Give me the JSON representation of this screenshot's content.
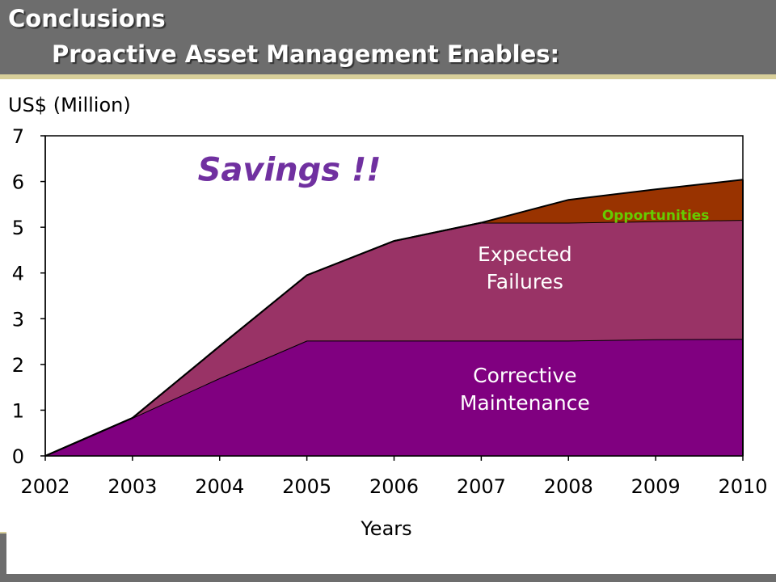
{
  "slide": {
    "title_line1": "Conclusions",
    "title_line2": "Proactive Asset Management Enables:"
  },
  "chart_data": {
    "type": "area",
    "stacked": true,
    "ylabel": "US$ (Million)",
    "xlabel": "Years",
    "x": [
      2002,
      2003,
      2004,
      2005,
      2006,
      2007,
      2008,
      2009,
      2010
    ],
    "ylim": [
      0,
      7
    ],
    "yticks": [
      0,
      1,
      2,
      3,
      4,
      5,
      6,
      7
    ],
    "grid": false,
    "series": [
      {
        "name": "Corrective Maintenance",
        "values": [
          0,
          0.83,
          1.7,
          2.52,
          2.52,
          2.52,
          2.52,
          2.55,
          2.56
        ],
        "color": "#800080"
      },
      {
        "name": "Expected Failures",
        "values": [
          0,
          0,
          0.7,
          1.43,
          2.18,
          2.58,
          2.58,
          2.58,
          2.6
        ],
        "color": "#993366"
      },
      {
        "name": "Opportunities",
        "values": [
          0,
          0,
          0,
          0,
          0,
          0,
          0.5,
          0.7,
          0.88
        ],
        "color": "#993300"
      }
    ],
    "series_label_lines": [
      {
        "lines": [
          "Corrective",
          "Maintenance"
        ],
        "color": "#ffffff",
        "at": [
          2007.5,
          1.45
        ]
      },
      {
        "lines": [
          "Expected",
          "Failures"
        ],
        "color": "#ffffff",
        "at": [
          2007.5,
          4.1
        ]
      },
      {
        "lines": [
          "Opportunities"
        ],
        "color": "#66cc00",
        "at": [
          2009.0,
          5.3
        ]
      }
    ],
    "annotation": {
      "text": "Savings !!",
      "color": "#7030a0",
      "at": [
        2004.8,
        6.3
      ]
    }
  }
}
